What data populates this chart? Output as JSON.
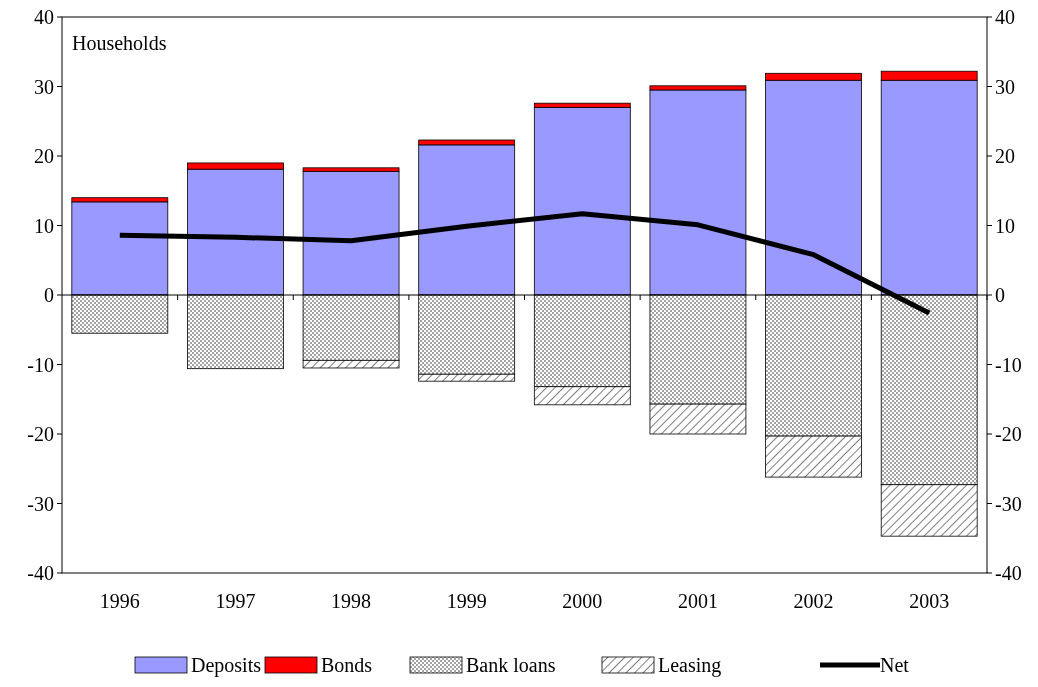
{
  "chart_data": {
    "type": "bar",
    "title": "Households",
    "stacked": true,
    "categories": [
      "1996",
      "1997",
      "1998",
      "1999",
      "2000",
      "2001",
      "2002",
      "2003"
    ],
    "series": [
      {
        "name": "Deposits",
        "color": "#9999ff",
        "values": [
          13.4,
          18.1,
          17.8,
          21.6,
          27.0,
          29.5,
          30.9,
          30.9
        ]
      },
      {
        "name": "Bonds",
        "color": "#ff0000",
        "values": [
          0.6,
          0.9,
          0.5,
          0.7,
          0.6,
          0.6,
          1.0,
          1.3
        ]
      },
      {
        "name": "Bank loans",
        "color": "#000000",
        "values": [
          -5.5,
          -10.6,
          -9.4,
          -11.4,
          -13.2,
          -15.7,
          -20.3,
          -27.3
        ]
      },
      {
        "name": "Leasing",
        "color": "#000000",
        "values": [
          0,
          0,
          -1.1,
          -1.0,
          -2.6,
          -4.3,
          -5.9,
          -7.4
        ]
      },
      {
        "name": "Net",
        "type": "line",
        "color": "#000000",
        "values": [
          8.6,
          8.3,
          7.8,
          9.9,
          11.7,
          10.1,
          5.8,
          -2.6
        ]
      }
    ],
    "ylim": [
      -40,
      40
    ],
    "yticks": [
      -40,
      -30,
      -20,
      -10,
      0,
      10,
      20,
      30,
      40
    ],
    "y2lim": [
      -40,
      40
    ],
    "y2ticks": [
      -40,
      -30,
      -20,
      -10,
      0,
      10,
      20,
      30,
      40
    ],
    "legend": "bottom"
  }
}
